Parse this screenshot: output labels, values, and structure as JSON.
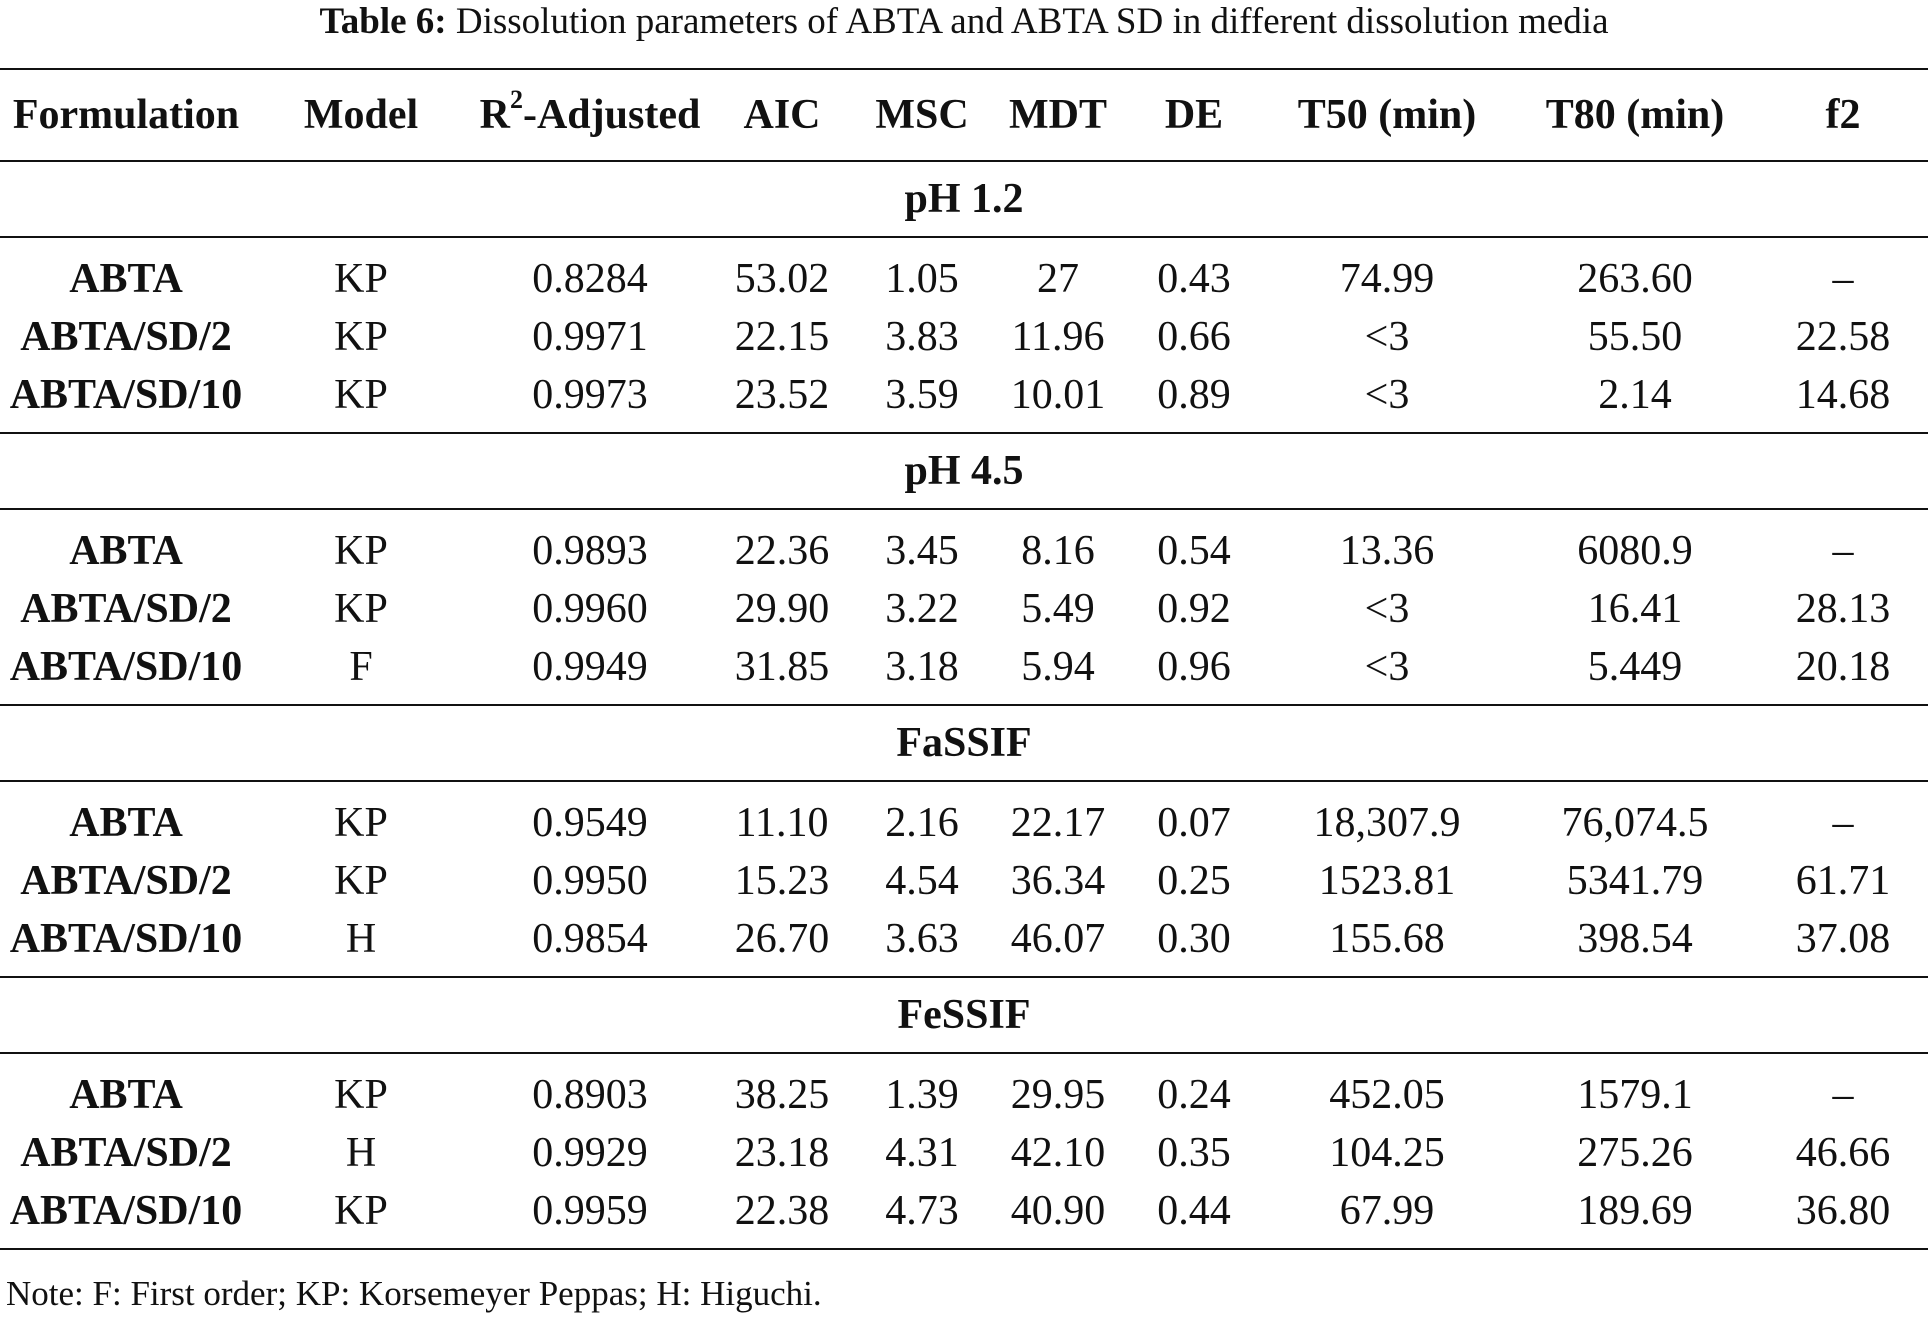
{
  "caption": {
    "label": "Table 6:",
    "text": "Dissolution parameters of ABTA and ABTA SD in different dissolution media"
  },
  "columns": {
    "formulation": "Formulation",
    "model": "Model",
    "r2_prefix": "R",
    "r2_sup": "2",
    "r2_suffix": "-Adjusted",
    "aic": "AIC",
    "msc": "MSC",
    "mdt": "MDT",
    "de": "DE",
    "t50": "T50 (min)",
    "t80": "T80 (min)",
    "f2": "f2"
  },
  "groups": [
    {
      "name": "pH 1.2",
      "rows": [
        {
          "formulation": "ABTA",
          "model": "KP",
          "r2": "0.8284",
          "aic": "53.02",
          "msc": "1.05",
          "mdt": "27",
          "de": "0.43",
          "t50": "74.99",
          "t80": "263.60",
          "f2": "–"
        },
        {
          "formulation": "ABTA/SD/2",
          "model": "KP",
          "r2": "0.9971",
          "aic": "22.15",
          "msc": "3.83",
          "mdt": "11.96",
          "de": "0.66",
          "t50": "<3",
          "t80": "55.50",
          "f2": "22.58"
        },
        {
          "formulation": "ABTA/SD/10",
          "model": "KP",
          "r2": "0.9973",
          "aic": "23.52",
          "msc": "3.59",
          "mdt": "10.01",
          "de": "0.89",
          "t50": "<3",
          "t80": "2.14",
          "f2": "14.68"
        }
      ]
    },
    {
      "name": "pH 4.5",
      "rows": [
        {
          "formulation": "ABTA",
          "model": "KP",
          "r2": "0.9893",
          "aic": "22.36",
          "msc": "3.45",
          "mdt": "8.16",
          "de": "0.54",
          "t50": "13.36",
          "t80": "6080.9",
          "f2": "–"
        },
        {
          "formulation": "ABTA/SD/2",
          "model": "KP",
          "r2": "0.9960",
          "aic": "29.90",
          "msc": "3.22",
          "mdt": "5.49",
          "de": "0.92",
          "t50": "<3",
          "t80": "16.41",
          "f2": "28.13"
        },
        {
          "formulation": "ABTA/SD/10",
          "model": "F",
          "r2": "0.9949",
          "aic": "31.85",
          "msc": "3.18",
          "mdt": "5.94",
          "de": "0.96",
          "t50": "<3",
          "t80": "5.449",
          "f2": "20.18"
        }
      ]
    },
    {
      "name": "FaSSIF",
      "rows": [
        {
          "formulation": "ABTA",
          "model": "KP",
          "r2": "0.9549",
          "aic": "11.10",
          "msc": "2.16",
          "mdt": "22.17",
          "de": "0.07",
          "t50": "18,307.9",
          "t80": "76,074.5",
          "f2": "–"
        },
        {
          "formulation": "ABTA/SD/2",
          "model": "KP",
          "r2": "0.9950",
          "aic": "15.23",
          "msc": "4.54",
          "mdt": "36.34",
          "de": "0.25",
          "t50": "1523.81",
          "t80": "5341.79",
          "f2": "61.71"
        },
        {
          "formulation": "ABTA/SD/10",
          "model": "H",
          "r2": "0.9854",
          "aic": "26.70",
          "msc": "3.63",
          "mdt": "46.07",
          "de": "0.30",
          "t50": "155.68",
          "t80": "398.54",
          "f2": "37.08"
        }
      ]
    },
    {
      "name": "FeSSIF",
      "rows": [
        {
          "formulation": "ABTA",
          "model": "KP",
          "r2": "0.8903",
          "aic": "38.25",
          "msc": "1.39",
          "mdt": "29.95",
          "de": "0.24",
          "t50": "452.05",
          "t80": "1579.1",
          "f2": "–"
        },
        {
          "formulation": "ABTA/SD/2",
          "model": "H",
          "r2": "0.9929",
          "aic": "23.18",
          "msc": "4.31",
          "mdt": "42.10",
          "de": "0.35",
          "t50": "104.25",
          "t80": "275.26",
          "f2": "46.66"
        },
        {
          "formulation": "ABTA/SD/10",
          "model": "KP",
          "r2": "0.9959",
          "aic": "22.38",
          "msc": "4.73",
          "mdt": "40.90",
          "de": "0.44",
          "t50": "67.99",
          "t80": "189.69",
          "f2": "36.80"
        }
      ]
    }
  ],
  "note": "Note: F: First order; KP: Korsemeyer Peppas; H: Higuchi."
}
